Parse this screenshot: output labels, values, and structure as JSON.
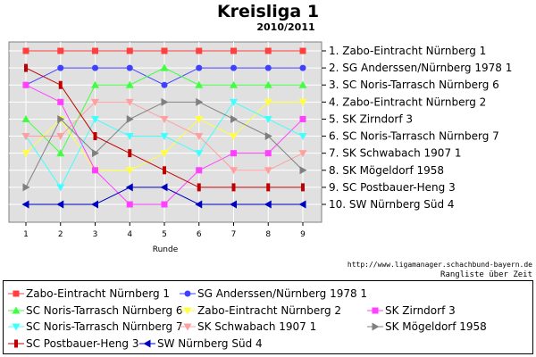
{
  "chart_data": {
    "type": "line",
    "title": "Kreisliga 1",
    "subtitle": "2010/2011",
    "xlabel": "Runde",
    "x": [
      1,
      2,
      3,
      4,
      5,
      6,
      7,
      8,
      9
    ],
    "ylim": [
      1,
      10
    ],
    "y_inverted": true,
    "grid": true,
    "ranking": [
      "1.  Zabo-Eintracht Nürnberg 1",
      "2.  SG Anderssen/Nürnberg 1978 1",
      "3.  SC Noris-Tarrasch Nürnberg 6",
      "4.  Zabo-Eintracht Nürnberg 2",
      "5.  SK Zirndorf 3",
      "6.  SC Noris-Tarrasch Nürnberg 7",
      "7.  SK Schwabach 1907 1",
      "8.  SK Mögeldorf 1958",
      "9.  SC Postbauer-Heng 3",
      "10. SW Nürnberg Süd 4"
    ],
    "series": [
      {
        "name": "Zabo-Eintracht Nürnberg 1",
        "color": "#ff4040",
        "marker": "square",
        "values": [
          1,
          1,
          1,
          1,
          1,
          1,
          1,
          1,
          1
        ]
      },
      {
        "name": "SG Anderssen/Nürnberg 1978 1",
        "color": "#4040ff",
        "marker": "circle",
        "values": [
          3,
          2,
          2,
          2,
          3,
          2,
          2,
          2,
          2
        ]
      },
      {
        "name": "SC Noris-Tarrasch Nürnberg 6",
        "color": "#40ff40",
        "marker": "triangle-up",
        "values": [
          5,
          7,
          3,
          3,
          2,
          3,
          3,
          3,
          3
        ]
      },
      {
        "name": "Zabo-Eintracht Nürnberg 2",
        "color": "#ffff40",
        "marker": "triangle-down",
        "values": [
          7,
          5,
          8,
          8,
          7,
          5,
          6,
          4,
          4
        ]
      },
      {
        "name": "SK Zirndorf 3",
        "color": "#ff40ff",
        "marker": "square",
        "values": [
          3,
          4,
          8,
          10,
          10,
          8,
          7,
          7,
          5
        ]
      },
      {
        "name": "SC Noris-Tarrasch Nürnberg 7",
        "color": "#40ffff",
        "marker": "triangle-down",
        "values": [
          6,
          9,
          5,
          6,
          6,
          7,
          4,
          5,
          6
        ]
      },
      {
        "name": "SK Schwabach 1907 1",
        "color": "#ffa0a0",
        "marker": "triangle-down",
        "values": [
          6,
          6,
          4,
          4,
          5,
          6,
          8,
          8,
          7
        ]
      },
      {
        "name": "SK Mögeldorf 1958",
        "color": "#808080",
        "marker": "triangle-right",
        "values": [
          9,
          5,
          7,
          5,
          4,
          4,
          5,
          6,
          8
        ]
      },
      {
        "name": "SC Postbauer-Heng 3",
        "color": "#c00000",
        "marker": "bar",
        "values": [
          2,
          3,
          6,
          7,
          8,
          9,
          9,
          9,
          9
        ]
      },
      {
        "name": "SW Nürnberg Süd 4",
        "color": "#0000c0",
        "marker": "triangle-left",
        "values": [
          10,
          10,
          10,
          9,
          9,
          10,
          10,
          10,
          10
        ]
      }
    ]
  },
  "footer": {
    "url": "http://www.ligamanager.schachbund-bayern.de",
    "caption": "Rangliste über Zeit"
  }
}
